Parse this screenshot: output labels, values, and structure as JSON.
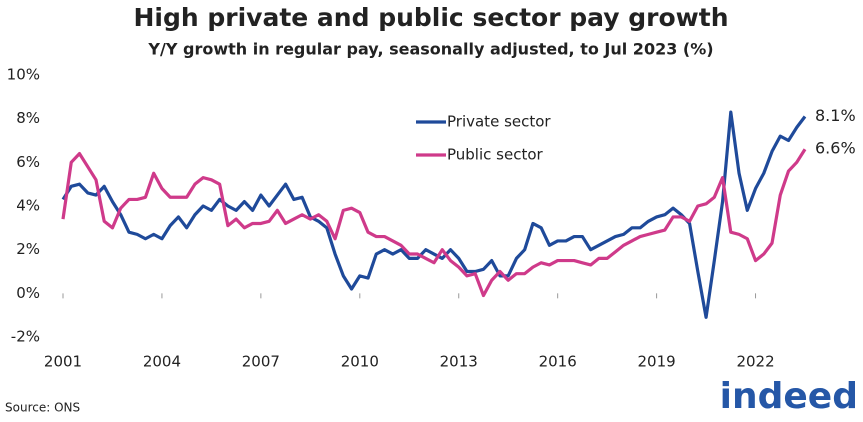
{
  "chart_data": {
    "type": "line",
    "title": "High private and public sector pay growth",
    "subtitle": "Y/Y growth in regular pay, seasonally adjusted, to Jul 2023 (%)",
    "source": "Source: ONS",
    "logo": "indeed",
    "legend": "upper center",
    "grid": false,
    "xlim": [
      2001,
      2023.5
    ],
    "xticks": [
      2001,
      2004,
      2007,
      2010,
      2013,
      2016,
      2019,
      2022
    ],
    "ylim": [
      -2,
      10
    ],
    "yticks": [
      {
        "value": -2,
        "label": "-2%"
      },
      {
        "value": 0,
        "label": "0%"
      },
      {
        "value": 2,
        "label": "2%"
      },
      {
        "value": 4,
        "label": "4%"
      },
      {
        "value": 6,
        "label": "6%"
      },
      {
        "value": 8,
        "label": "8%"
      },
      {
        "value": 10,
        "label": "10%"
      }
    ],
    "x": [
      2001,
      2001.25,
      2001.5,
      2001.75,
      2002,
      2002.25,
      2002.5,
      2002.75,
      2003,
      2003.25,
      2003.5,
      2003.75,
      2004,
      2004.25,
      2004.5,
      2004.75,
      2005,
      2005.25,
      2005.5,
      2005.75,
      2006,
      2006.25,
      2006.5,
      2006.75,
      2007,
      2007.25,
      2007.5,
      2007.75,
      2008,
      2008.25,
      2008.5,
      2008.75,
      2009,
      2009.25,
      2009.5,
      2009.75,
      2010,
      2010.25,
      2010.5,
      2010.75,
      2011,
      2011.25,
      2011.5,
      2011.75,
      2012,
      2012.25,
      2012.5,
      2012.75,
      2013,
      2013.25,
      2013.5,
      2013.75,
      2014,
      2014.25,
      2014.5,
      2014.75,
      2015,
      2015.25,
      2015.5,
      2015.75,
      2016,
      2016.25,
      2016.5,
      2016.75,
      2017,
      2017.25,
      2017.5,
      2017.75,
      2018,
      2018.25,
      2018.5,
      2018.75,
      2019,
      2019.25,
      2019.5,
      2019.75,
      2020,
      2020.25,
      2020.5,
      2020.75,
      2021,
      2021.25,
      2021.5,
      2021.75,
      2022,
      2022.25,
      2022.5,
      2022.75,
      2023,
      2023.25,
      2023.5
    ],
    "series": [
      {
        "name": "Private sector",
        "color": "#1f4a9a",
        "values": [
          4.3,
          4.9,
          5.0,
          4.6,
          4.5,
          4.9,
          4.2,
          3.6,
          2.8,
          2.7,
          2.5,
          2.7,
          2.5,
          3.1,
          3.5,
          3.0,
          3.6,
          4.0,
          3.8,
          4.3,
          4.0,
          3.8,
          4.2,
          3.8,
          4.5,
          4.0,
          4.5,
          5.0,
          4.3,
          4.4,
          3.5,
          3.3,
          3.0,
          1.8,
          0.8,
          0.2,
          0.8,
          0.7,
          1.8,
          2.0,
          1.8,
          2.0,
          1.6,
          1.6,
          2.0,
          1.8,
          1.6,
          2.0,
          1.6,
          1.0,
          1.0,
          1.1,
          1.5,
          0.8,
          0.8,
          1.6,
          2.0,
          3.2,
          3.0,
          2.2,
          2.4,
          2.4,
          2.6,
          2.6,
          2.0,
          2.2,
          2.4,
          2.6,
          2.7,
          3.0,
          3.0,
          3.3,
          3.5,
          3.6,
          3.9,
          3.6,
          3.2,
          1.0,
          -1.1,
          1.5,
          4.2,
          8.3,
          5.5,
          3.8,
          4.8,
          5.5,
          6.5,
          7.2,
          7.0,
          7.6,
          8.1
        ],
        "value_labels": [
          null,
          null,
          null,
          null,
          null,
          null,
          null,
          null,
          null,
          null,
          null,
          null,
          null,
          null,
          null,
          null,
          null,
          null,
          null,
          null,
          null,
          null,
          null,
          null,
          null,
          null,
          null,
          null,
          null,
          null,
          null,
          null,
          null,
          null,
          null,
          null,
          null,
          null,
          null,
          null,
          null,
          null,
          null,
          null,
          null,
          null,
          null,
          null,
          null,
          null,
          null,
          null,
          null,
          null,
          null,
          null,
          null,
          null,
          null,
          null,
          null,
          null,
          null,
          null,
          null,
          null,
          null,
          null,
          null,
          null,
          null,
          null,
          null,
          null,
          null,
          null,
          null,
          null,
          null,
          null,
          null,
          null,
          null,
          null,
          null,
          null,
          null,
          null,
          null,
          null,
          "8.1%"
        ]
      },
      {
        "name": "Public sector",
        "color": "#cf3a8a",
        "values": [
          3.4,
          6.0,
          6.4,
          5.8,
          5.2,
          3.3,
          3.0,
          3.9,
          4.3,
          4.3,
          4.4,
          5.5,
          4.8,
          4.4,
          4.4,
          4.4,
          5.0,
          5.3,
          5.2,
          5.0,
          3.1,
          3.4,
          3.0,
          3.2,
          3.2,
          3.3,
          3.8,
          3.2,
          3.4,
          3.6,
          3.4,
          3.6,
          3.3,
          2.5,
          3.8,
          3.9,
          3.7,
          2.8,
          2.6,
          2.6,
          2.4,
          2.2,
          1.8,
          1.8,
          1.6,
          1.4,
          2.0,
          1.5,
          1.2,
          0.8,
          0.9,
          -0.1,
          0.6,
          1.0,
          0.6,
          0.9,
          0.9,
          1.2,
          1.4,
          1.3,
          1.5,
          1.5,
          1.5,
          1.4,
          1.3,
          1.6,
          1.6,
          1.9,
          2.2,
          2.4,
          2.6,
          2.7,
          2.8,
          2.9,
          3.5,
          3.5,
          3.3,
          4.0,
          4.1,
          4.4,
          5.3,
          2.8,
          2.7,
          2.5,
          1.5,
          1.8,
          2.3,
          4.5,
          5.6,
          6.0,
          6.6
        ],
        "value_labels": [
          null,
          null,
          null,
          null,
          null,
          null,
          null,
          null,
          null,
          null,
          null,
          null,
          null,
          null,
          null,
          null,
          null,
          null,
          null,
          null,
          null,
          null,
          null,
          null,
          null,
          null,
          null,
          null,
          null,
          null,
          null,
          null,
          null,
          null,
          null,
          null,
          null,
          null,
          null,
          null,
          null,
          null,
          null,
          null,
          null,
          null,
          null,
          null,
          null,
          null,
          null,
          null,
          null,
          null,
          null,
          null,
          null,
          null,
          null,
          null,
          null,
          null,
          null,
          null,
          null,
          null,
          null,
          null,
          null,
          null,
          null,
          null,
          null,
          null,
          null,
          null,
          null,
          null,
          null,
          null,
          null,
          null,
          null,
          null,
          null,
          null,
          null,
          null,
          null,
          null,
          "6.6%"
        ]
      }
    ]
  }
}
